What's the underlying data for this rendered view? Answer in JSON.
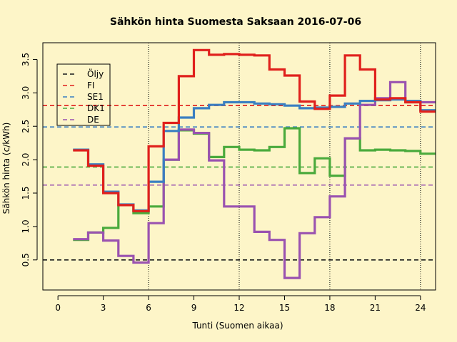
{
  "chart_data": {
    "type": "line",
    "style": "step",
    "title": "Sähkön hinta Suomesta Saksaan 2016-07-06",
    "xlabel": "Tunti (Suomen aikaa)",
    "ylabel": "Sähkön hinta (c/kWh)",
    "xlim": [
      -1,
      25
    ],
    "ylim": [
      0.05,
      3.75
    ],
    "xticks": [
      0,
      3,
      6,
      9,
      12,
      15,
      18,
      21,
      24
    ],
    "yticks": [
      0.5,
      1.0,
      1.5,
      2.0,
      2.5,
      3.0,
      3.5
    ],
    "vlines": [
      6,
      12,
      18,
      24
    ],
    "legend_position": "top-left",
    "series": [
      {
        "name": "FI",
        "color": "#e0201c",
        "values": [
          2.14,
          1.91,
          1.5,
          1.32,
          1.23,
          2.2,
          2.55,
          3.25,
          3.64,
          3.57,
          3.58,
          3.57,
          3.56,
          3.35,
          3.26,
          2.87,
          2.76,
          2.96,
          3.56,
          3.35,
          2.9,
          2.92,
          2.86,
          2.72
        ]
      },
      {
        "name": "SE1",
        "color": "#3a7fc1",
        "values": [
          2.15,
          1.93,
          1.52,
          1.33,
          1.24,
          1.67,
          2.43,
          2.63,
          2.77,
          2.82,
          2.86,
          2.86,
          2.84,
          2.83,
          2.81,
          2.77,
          2.78,
          2.79,
          2.84,
          2.88,
          2.89,
          2.9,
          2.88,
          2.74
        ]
      },
      {
        "name": "DK1",
        "color": "#4aaa3c",
        "values": [
          0.8,
          0.91,
          0.98,
          1.32,
          1.2,
          1.3,
          2.0,
          2.44,
          2.39,
          2.04,
          2.19,
          2.15,
          2.14,
          2.19,
          2.47,
          1.8,
          2.02,
          1.76,
          2.32,
          2.14,
          2.15,
          2.14,
          2.13,
          2.09
        ]
      },
      {
        "name": "DE",
        "color": "#9a52b0",
        "values": [
          0.81,
          0.91,
          0.79,
          0.56,
          0.46,
          1.05,
          2.0,
          2.45,
          2.4,
          1.99,
          1.3,
          1.3,
          0.92,
          0.8,
          0.23,
          0.9,
          1.14,
          1.45,
          2.32,
          2.82,
          2.92,
          3.16,
          2.86,
          2.86
        ]
      }
    ],
    "reference_lines": [
      {
        "name": "Öljy",
        "color": "#1a1a1a",
        "value": 0.5
      },
      {
        "name": "FI",
        "color": "#e0201c",
        "value": 2.81
      },
      {
        "name": "SE1",
        "color": "#3a7fc1",
        "value": 2.49
      },
      {
        "name": "DK1",
        "color": "#4aaa3c",
        "value": 1.89
      },
      {
        "name": "DE",
        "color": "#9a52b0",
        "value": 1.62
      }
    ],
    "legend": [
      "Öljy",
      "FI",
      "SE1",
      "DK1",
      "DE"
    ]
  }
}
